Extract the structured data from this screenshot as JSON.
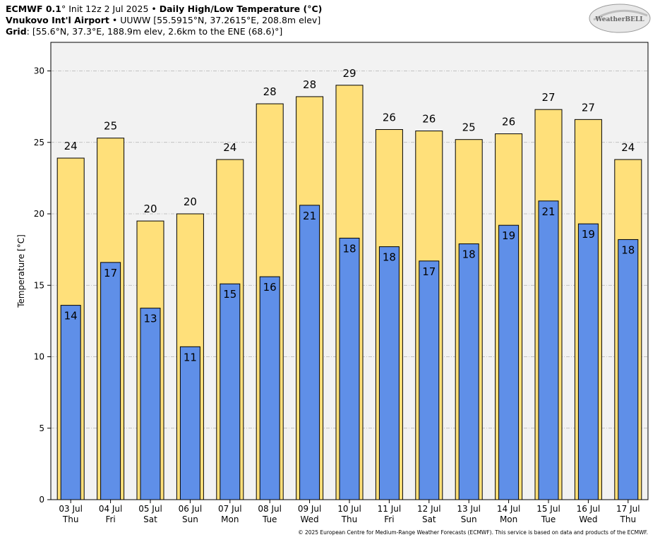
{
  "header": {
    "line1": {
      "model": "ECMWF 0.1",
      "init": "° Init 12z 2 Jul 2025",
      "sep": " • ",
      "product": "Daily High/Low Temperature (°C)"
    },
    "line2": {
      "station": "Vnukovo Int'l Airport",
      "detail": " • UUWW [55.5915°N, 37.2615°E, 208.8m elev]"
    },
    "line3": {
      "label": "Grid",
      "detail": ": [55.6°N, 37.3°E, 188.9m elev, 2.6km to the ENE (68.6)°]"
    }
  },
  "logo": {
    "text": "WeatherBELL"
  },
  "copyright": "© 2025 European Centre for Medium-Range Weather Forecasts (ECMWF). This service is based on data and products of the ECMWF.",
  "chart_data": {
    "type": "bar",
    "ylabel": "Temperature [°C]",
    "ylim": [
      0,
      32
    ],
    "yticks": [
      0,
      5,
      10,
      15,
      20,
      25,
      30
    ],
    "grid": true,
    "categories": [
      "03 Jul",
      "04 Jul",
      "05 Jul",
      "06 Jul",
      "07 Jul",
      "08 Jul",
      "09 Jul",
      "10 Jul",
      "11 Jul",
      "12 Jul",
      "13 Jul",
      "14 Jul",
      "15 Jul",
      "16 Jul",
      "17 Jul"
    ],
    "days": [
      "Thu",
      "Fri",
      "Sat",
      "Sun",
      "Mon",
      "Tue",
      "Wed",
      "Thu",
      "Fri",
      "Sat",
      "Sun",
      "Mon",
      "Tue",
      "Wed",
      "Thu"
    ],
    "series": [
      {
        "values": [
          23.9,
          25.3,
          19.5,
          20.0,
          23.8,
          27.7,
          28.2,
          29.0,
          25.9,
          25.8,
          25.2,
          25.6,
          27.3,
          26.6,
          23.8
        ],
        "labels": [
          "24",
          "25",
          "20",
          "20",
          "24",
          "28",
          "28",
          "29",
          "26",
          "26",
          "25",
          "26",
          "27",
          "27",
          "24"
        ],
        "color": "#ffe07a"
      },
      {
        "values": [
          13.6,
          16.6,
          13.4,
          10.7,
          15.1,
          15.6,
          20.6,
          18.3,
          17.7,
          16.7,
          17.9,
          19.2,
          20.9,
          19.3,
          18.2
        ],
        "labels": [
          "14",
          "17",
          "13",
          "11",
          "15",
          "16",
          "21",
          "18",
          "18",
          "17",
          "18",
          "19",
          "21",
          "19",
          "18"
        ],
        "color": "#5f8fe8"
      }
    ],
    "colors": {
      "plot_bg": "#f2f2f2",
      "grid": "#b3b3b3",
      "high": "#ffe07a",
      "low": "#5f8fe8"
    }
  }
}
